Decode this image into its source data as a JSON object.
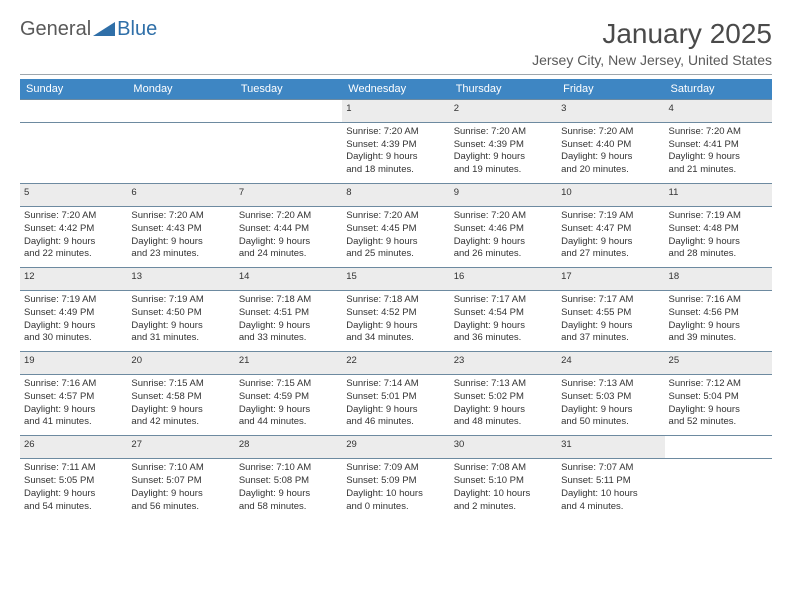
{
  "logo": {
    "text1": "General",
    "text2": "Blue",
    "color1": "#595959",
    "color2": "#2f6fa8",
    "shape_color": "#2f6fa8"
  },
  "title": "January 2025",
  "location": "Jersey City, New Jersey, United States",
  "header_bg": "#3e86c3",
  "daynum_bg": "#ececec",
  "border_color": "#6d8aa0",
  "day_headers": [
    "Sunday",
    "Monday",
    "Tuesday",
    "Wednesday",
    "Thursday",
    "Friday",
    "Saturday"
  ],
  "weeks": [
    {
      "nums": [
        "",
        "",
        "",
        "1",
        "2",
        "3",
        "4"
      ],
      "cells": [
        null,
        null,
        null,
        {
          "sunrise": "7:20 AM",
          "sunset": "4:39 PM",
          "day_h": "9",
          "day_m": "18"
        },
        {
          "sunrise": "7:20 AM",
          "sunset": "4:39 PM",
          "day_h": "9",
          "day_m": "19"
        },
        {
          "sunrise": "7:20 AM",
          "sunset": "4:40 PM",
          "day_h": "9",
          "day_m": "20"
        },
        {
          "sunrise": "7:20 AM",
          "sunset": "4:41 PM",
          "day_h": "9",
          "day_m": "21"
        }
      ]
    },
    {
      "nums": [
        "5",
        "6",
        "7",
        "8",
        "9",
        "10",
        "11"
      ],
      "cells": [
        {
          "sunrise": "7:20 AM",
          "sunset": "4:42 PM",
          "day_h": "9",
          "day_m": "22"
        },
        {
          "sunrise": "7:20 AM",
          "sunset": "4:43 PM",
          "day_h": "9",
          "day_m": "23"
        },
        {
          "sunrise": "7:20 AM",
          "sunset": "4:44 PM",
          "day_h": "9",
          "day_m": "24"
        },
        {
          "sunrise": "7:20 AM",
          "sunset": "4:45 PM",
          "day_h": "9",
          "day_m": "25"
        },
        {
          "sunrise": "7:20 AM",
          "sunset": "4:46 PM",
          "day_h": "9",
          "day_m": "26"
        },
        {
          "sunrise": "7:19 AM",
          "sunset": "4:47 PM",
          "day_h": "9",
          "day_m": "27"
        },
        {
          "sunrise": "7:19 AM",
          "sunset": "4:48 PM",
          "day_h": "9",
          "day_m": "28"
        }
      ]
    },
    {
      "nums": [
        "12",
        "13",
        "14",
        "15",
        "16",
        "17",
        "18"
      ],
      "cells": [
        {
          "sunrise": "7:19 AM",
          "sunset": "4:49 PM",
          "day_h": "9",
          "day_m": "30"
        },
        {
          "sunrise": "7:19 AM",
          "sunset": "4:50 PM",
          "day_h": "9",
          "day_m": "31"
        },
        {
          "sunrise": "7:18 AM",
          "sunset": "4:51 PM",
          "day_h": "9",
          "day_m": "33"
        },
        {
          "sunrise": "7:18 AM",
          "sunset": "4:52 PM",
          "day_h": "9",
          "day_m": "34"
        },
        {
          "sunrise": "7:17 AM",
          "sunset": "4:54 PM",
          "day_h": "9",
          "day_m": "36"
        },
        {
          "sunrise": "7:17 AM",
          "sunset": "4:55 PM",
          "day_h": "9",
          "day_m": "37"
        },
        {
          "sunrise": "7:16 AM",
          "sunset": "4:56 PM",
          "day_h": "9",
          "day_m": "39"
        }
      ]
    },
    {
      "nums": [
        "19",
        "20",
        "21",
        "22",
        "23",
        "24",
        "25"
      ],
      "cells": [
        {
          "sunrise": "7:16 AM",
          "sunset": "4:57 PM",
          "day_h": "9",
          "day_m": "41"
        },
        {
          "sunrise": "7:15 AM",
          "sunset": "4:58 PM",
          "day_h": "9",
          "day_m": "42"
        },
        {
          "sunrise": "7:15 AM",
          "sunset": "4:59 PM",
          "day_h": "9",
          "day_m": "44"
        },
        {
          "sunrise": "7:14 AM",
          "sunset": "5:01 PM",
          "day_h": "9",
          "day_m": "46"
        },
        {
          "sunrise": "7:13 AM",
          "sunset": "5:02 PM",
          "day_h": "9",
          "day_m": "48"
        },
        {
          "sunrise": "7:13 AM",
          "sunset": "5:03 PM",
          "day_h": "9",
          "day_m": "50"
        },
        {
          "sunrise": "7:12 AM",
          "sunset": "5:04 PM",
          "day_h": "9",
          "day_m": "52"
        }
      ]
    },
    {
      "nums": [
        "26",
        "27",
        "28",
        "29",
        "30",
        "31",
        ""
      ],
      "cells": [
        {
          "sunrise": "7:11 AM",
          "sunset": "5:05 PM",
          "day_h": "9",
          "day_m": "54"
        },
        {
          "sunrise": "7:10 AM",
          "sunset": "5:07 PM",
          "day_h": "9",
          "day_m": "56"
        },
        {
          "sunrise": "7:10 AM",
          "sunset": "5:08 PM",
          "day_h": "9",
          "day_m": "58"
        },
        {
          "sunrise": "7:09 AM",
          "sunset": "5:09 PM",
          "day_h": "10",
          "day_m": "0"
        },
        {
          "sunrise": "7:08 AM",
          "sunset": "5:10 PM",
          "day_h": "10",
          "day_m": "2"
        },
        {
          "sunrise": "7:07 AM",
          "sunset": "5:11 PM",
          "day_h": "10",
          "day_m": "4"
        },
        null
      ]
    }
  ]
}
